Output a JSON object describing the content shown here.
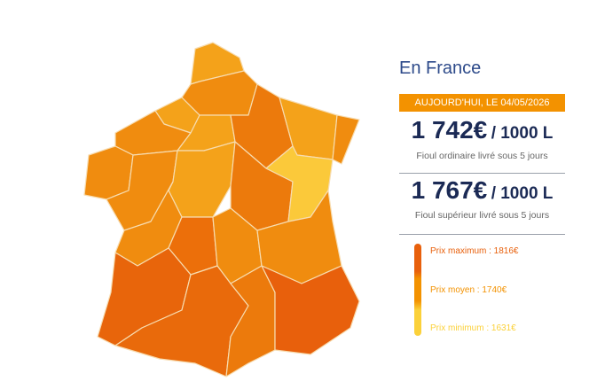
{
  "panel": {
    "title": "En France",
    "date_badge": "AUJOURD'HUI, LE 04/05/2026",
    "prices": [
      {
        "amount": "1 742€",
        "unit": "/ 1000 L",
        "caption": "Fioul ordinaire livré sous 5 jours"
      },
      {
        "amount": "1 767€",
        "unit": "/ 1000 L",
        "caption": "Fioul supérieur livré sous 5 jours"
      }
    ],
    "legend": [
      {
        "label": "Prix maximum : 1816€",
        "color": "#e8600c"
      },
      {
        "label": "Prix moyen : 1740€",
        "color": "#f39200"
      },
      {
        "label": "Prix minimum : 1631€",
        "color": "#fbd13a"
      }
    ]
  }
}
